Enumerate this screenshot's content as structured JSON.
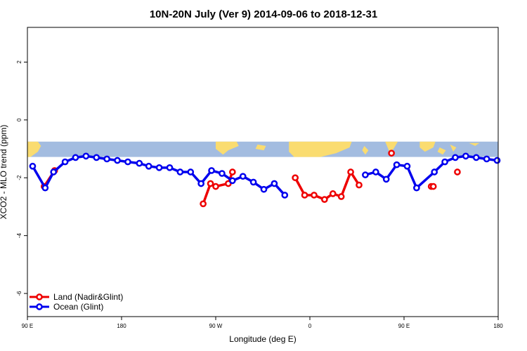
{
  "chart_data": {
    "type": "line",
    "title": "10N-20N July (Ver 9)   2014-09-06 to 2018-12-31",
    "xlabel": "Longitude (deg E)",
    "ylabel": "XCO2 - MLO trend (ppm)",
    "xlim": [
      90,
      540
    ],
    "ylim": [
      -6.8,
      3.2
    ],
    "x_ticks": [
      {
        "value": 90,
        "label": "90 E"
      },
      {
        "value": 180,
        "label": "180"
      },
      {
        "value": 270,
        "label": "90 W"
      },
      {
        "value": 360,
        "label": "0"
      },
      {
        "value": 450,
        "label": "90 E"
      },
      {
        "value": 540,
        "label": "180"
      }
    ],
    "y_ticks": [
      {
        "value": 2,
        "label": "2"
      },
      {
        "value": 0,
        "label": "0"
      },
      {
        "value": -2,
        "label": "-2"
      },
      {
        "value": -4,
        "label": "-4"
      },
      {
        "value": -6,
        "label": "-6"
      }
    ],
    "map_strip": {
      "y_top": -0.75,
      "y_bottom": -1.28,
      "ocean_color": "#a3bce0",
      "land_color": "#fadc70"
    },
    "series": [
      {
        "name": "Land (Nadir&Glint)",
        "color": "#ee0000",
        "segments": [
          {
            "x": [
              106,
              116
            ],
            "y": [
              -2.3,
              -1.75
            ]
          },
          {
            "x": [
              258,
              265,
              270,
              282,
              286
            ],
            "y": [
              -2.9,
              -2.2,
              -2.3,
              -2.2,
              -1.8
            ]
          },
          {
            "x": [
              346,
              355,
              364,
              374,
              382,
              390,
              399,
              407
            ],
            "y": [
              -2.0,
              -2.6,
              -2.6,
              -2.75,
              -2.55,
              -2.65,
              -1.8,
              -2.25
            ]
          },
          {
            "x": [
              438
            ],
            "y": [
              -1.15
            ]
          },
          {
            "x": [
              476,
              478
            ],
            "y": [
              -2.3,
              -2.3
            ]
          },
          {
            "x": [
              501
            ],
            "y": [
              -1.8
            ]
          }
        ]
      },
      {
        "name": "Ocean (Glint)",
        "color": "#0000ee",
        "segments": [
          {
            "x": [
              95,
              107,
              115,
              126,
              136,
              146,
              156,
              166,
              176,
              186,
              197,
              206,
              216,
              226,
              236,
              246,
              256,
              266,
              276,
              286,
              296,
              306,
              316,
              326,
              336
            ],
            "y": [
              -1.6,
              -2.35,
              -1.8,
              -1.45,
              -1.3,
              -1.25,
              -1.3,
              -1.35,
              -1.4,
              -1.45,
              -1.5,
              -1.6,
              -1.65,
              -1.65,
              -1.8,
              -1.8,
              -2.2,
              -1.75,
              -1.85,
              -2.1,
              -1.95,
              -2.15,
              -2.4,
              -2.2,
              -2.6
            ]
          },
          {
            "x": [
              413,
              423,
              433,
              443,
              453,
              462,
              479,
              489,
              499,
              509,
              519,
              529,
              539
            ],
            "y": [
              -1.9,
              -1.8,
              -2.05,
              -1.55,
              -1.6,
              -2.35,
              -1.8,
              -1.45,
              -1.3,
              -1.25,
              -1.3,
              -1.35,
              -1.4
            ]
          }
        ]
      }
    ],
    "legend_position": "bottom-left",
    "grid": false
  }
}
